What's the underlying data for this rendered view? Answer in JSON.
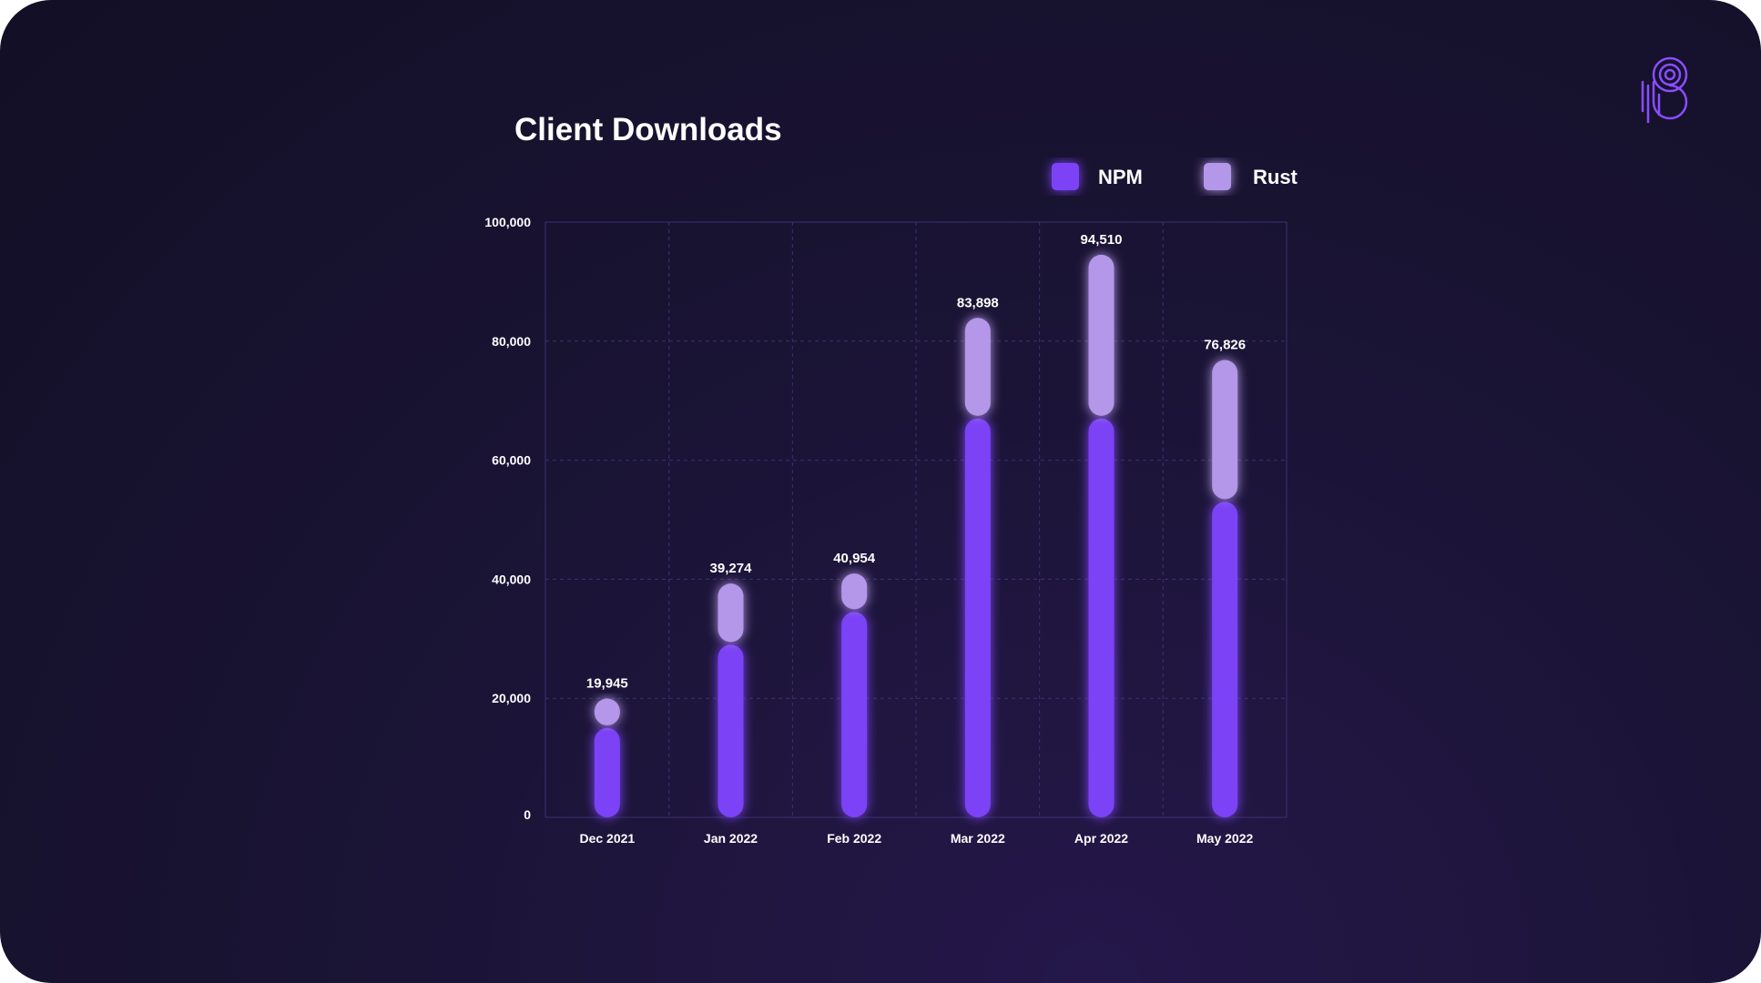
{
  "colors": {
    "npm": "#7c43f5",
    "rust": "#b497e8",
    "logo": "#8a4dff"
  },
  "logo": {
    "icon": "brand-logo-icon"
  },
  "chart_data": {
    "type": "bar",
    "stacked": true,
    "title": "Client Downloads",
    "xlabel": "",
    "ylabel": "",
    "categories": [
      "Dec 2021",
      "Jan 2022",
      "Feb 2022",
      "Mar 2022",
      "Apr 2022",
      "May 2022"
    ],
    "series": [
      {
        "name": "NPM",
        "values": [
          15000,
          29000,
          34500,
          67000,
          67000,
          53000
        ]
      },
      {
        "name": "Rust",
        "values": [
          4945,
          10274,
          6454,
          16898,
          27510,
          23826
        ]
      }
    ],
    "totals": [
      "19,945",
      "39,274",
      "40,954",
      "83,898",
      "94,510",
      "76,826"
    ],
    "ylim": [
      0,
      100000
    ],
    "yticks": [
      "0",
      "20,000",
      "40,000",
      "60,000",
      "80,000",
      "100,000"
    ],
    "grid": true,
    "legend": "top-right"
  }
}
